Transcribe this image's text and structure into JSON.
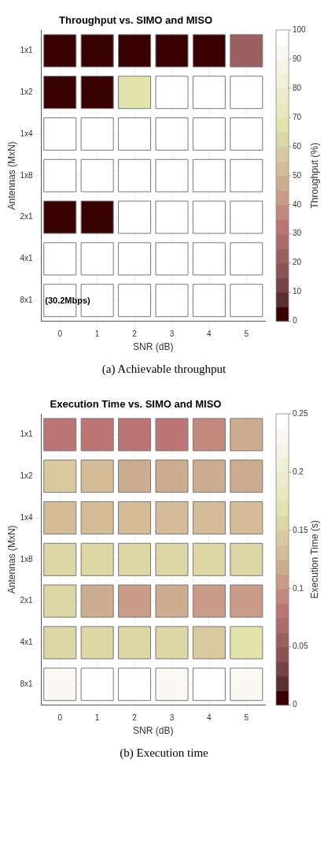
{
  "chart_data": [
    {
      "type": "heatmap",
      "title": "Throughput vs. SIMO and MISO",
      "xlabel": "SNR (dB)",
      "ylabel": "Antennas (MxN)",
      "clabel": "Throughput (%)",
      "categories": [
        "0",
        "1",
        "2",
        "3",
        "4",
        "5"
      ],
      "y_categories": [
        "1x1",
        "1x2",
        "1x4",
        "1x8",
        "2x1",
        "4x1",
        "8x1"
      ],
      "cells": [
        [
          0,
          0,
          0,
          0,
          0,
          22
        ],
        [
          0,
          0,
          65,
          100,
          100,
          100
        ],
        [
          100,
          100,
          100,
          100,
          100,
          100
        ],
        [
          100,
          100,
          100,
          100,
          100,
          100
        ],
        [
          0,
          0,
          100,
          100,
          100,
          100
        ],
        [
          100,
          100,
          100,
          100,
          100,
          100
        ],
        [
          100,
          100,
          100,
          100,
          100,
          100
        ]
      ],
      "clim": [
        0,
        100
      ],
      "cticks": [
        0,
        10,
        20,
        30,
        40,
        50,
        60,
        70,
        80,
        90,
        100
      ],
      "grid": true,
      "annotations": [
        "(30.2Mbps)",
        "(a) Achievable throughput"
      ]
    },
    {
      "type": "heatmap",
      "title": "Execution Time vs. SIMO and MISO",
      "xlabel": "SNR (dB)",
      "ylabel": "Antennas (MxN)",
      "clabel": "Execution Time (s)",
      "categories": [
        "0",
        "1",
        "2",
        "3",
        "4",
        "5"
      ],
      "y_categories": [
        "1x1",
        "1x2",
        "1x4",
        "1x8",
        "2x1",
        "4x1",
        "8x1"
      ],
      "cells": [
        [
          0.08,
          0.08,
          0.08,
          0.08,
          0.095,
          0.12
        ],
        [
          0.14,
          0.13,
          0.12,
          0.12,
          0.12,
          0.12
        ],
        [
          0.13,
          0.13,
          0.13,
          0.13,
          0.13,
          0.13
        ],
        [
          0.15,
          0.15,
          0.15,
          0.15,
          0.15,
          0.15
        ],
        [
          0.15,
          0.12,
          0.105,
          0.12,
          0.105,
          0.105
        ],
        [
          0.15,
          0.15,
          0.15,
          0.15,
          0.14,
          0.17
        ],
        [
          0.23,
          0.25,
          0.25,
          0.23,
          0.25,
          0.23
        ]
      ],
      "clim": [
        0,
        0.25
      ],
      "cticks": [
        0,
        0.05,
        0.1,
        0.15,
        0.2,
        0.25
      ],
      "grid": true,
      "annotations": [
        "(b) Execution time"
      ]
    }
  ]
}
